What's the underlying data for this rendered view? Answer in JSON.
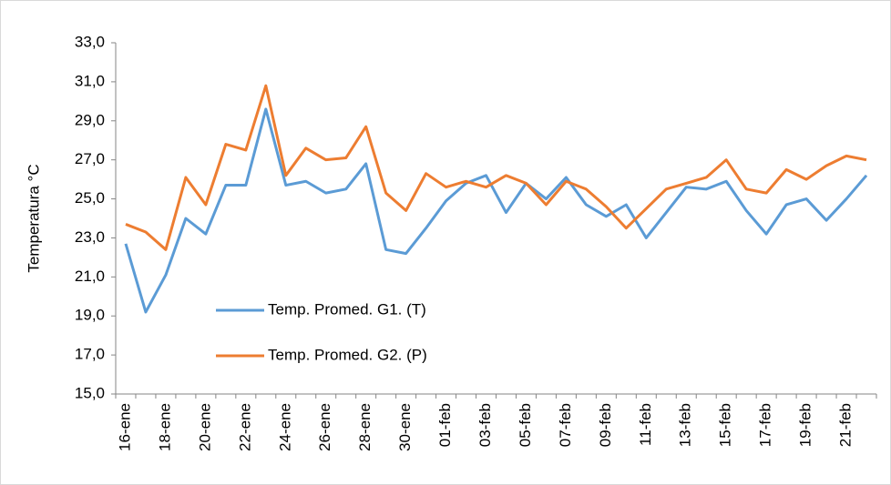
{
  "chart_data": {
    "type": "line",
    "y_label": "Temperatura °C",
    "categories": [
      "16-ene",
      null,
      "18-ene",
      null,
      "20-ene",
      null,
      "22-ene",
      null,
      "24-ene",
      null,
      "26-ene",
      null,
      "28-ene",
      null,
      "30-ene",
      null,
      "01-feb",
      null,
      "03-feb",
      null,
      "05-feb",
      null,
      "07-feb",
      null,
      "09-feb",
      null,
      "11-feb",
      null,
      "13-feb",
      null,
      "15-feb",
      null,
      "17-feb",
      null,
      "19-feb",
      null,
      "21-feb",
      null
    ],
    "series": [
      {
        "name": "Temp. Promed. G1. (T)",
        "color": "#5b9bd5",
        "values": [
          22.7,
          19.2,
          21.1,
          24.0,
          23.2,
          25.7,
          25.7,
          29.6,
          25.7,
          25.9,
          25.3,
          25.5,
          26.8,
          22.4,
          22.2,
          23.5,
          24.9,
          25.8,
          26.2,
          24.3,
          25.8,
          25.0,
          26.1,
          24.7,
          24.1,
          24.7,
          23.0,
          24.3,
          25.6,
          25.5,
          25.9,
          24.4,
          23.2,
          24.7,
          25.0,
          23.9,
          25.0,
          26.2
        ]
      },
      {
        "name": "Temp. Promed. G2. (P)",
        "color": "#ed7d31",
        "values": [
          23.7,
          23.3,
          22.4,
          26.1,
          24.7,
          27.8,
          27.5,
          30.8,
          26.2,
          27.6,
          27.0,
          27.1,
          28.7,
          25.3,
          24.4,
          26.3,
          25.6,
          25.9,
          25.6,
          26.2,
          25.8,
          24.7,
          25.9,
          25.5,
          24.6,
          23.5,
          24.5,
          25.5,
          25.8,
          26.1,
          27.0,
          25.5,
          25.3,
          26.5,
          26.0,
          26.7,
          27.2,
          27.0
        ]
      }
    ],
    "ylim": [
      15,
      33
    ],
    "yticks": [
      {
        "value": 15,
        "label": "15,0"
      },
      {
        "value": 17,
        "label": "17,0"
      },
      {
        "value": 19,
        "label": "19,0"
      },
      {
        "value": 21,
        "label": "21,0"
      },
      {
        "value": 23,
        "label": "23,0"
      },
      {
        "value": 25,
        "label": "25,0"
      },
      {
        "value": 27,
        "label": "27,0"
      },
      {
        "value": 29,
        "label": "29,0"
      },
      {
        "value": 31,
        "label": "31,0"
      },
      {
        "value": 33,
        "label": "33,0"
      }
    ],
    "grid": false
  }
}
